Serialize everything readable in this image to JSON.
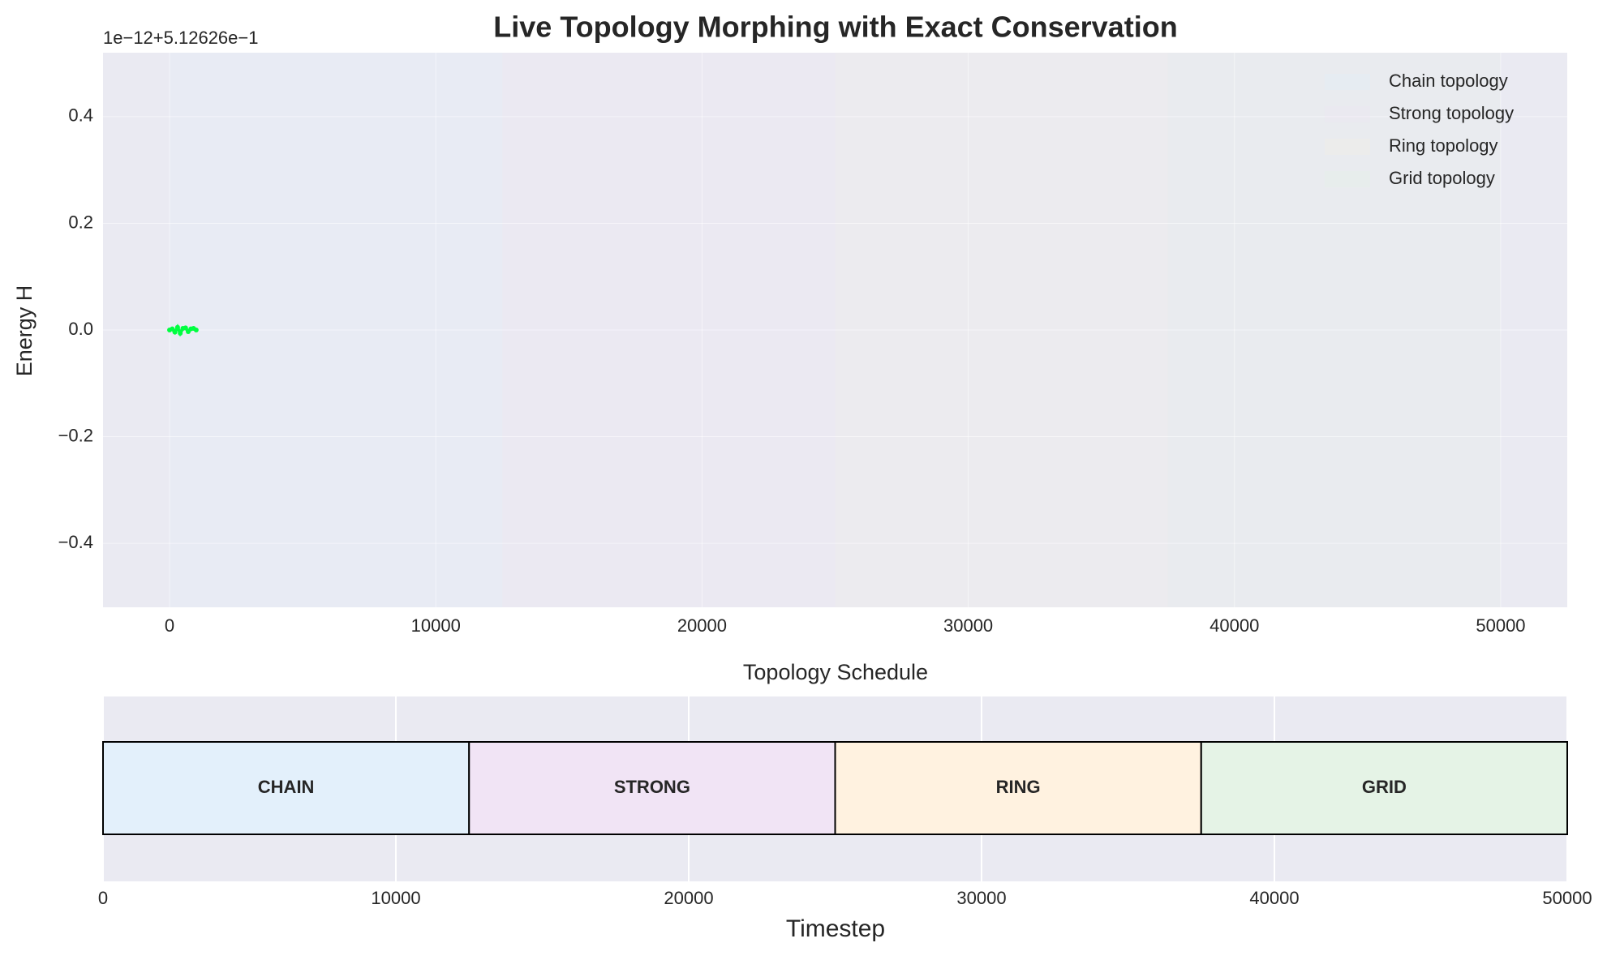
{
  "chart_data": [
    {
      "type": "line",
      "title": "Live Topology Morphing with Exact Conservation",
      "y_label": "Energy H",
      "y_offset_label": "1e−12+5.12626e−1",
      "xlim": [
        -2500,
        52500
      ],
      "xticks": [
        0,
        10000,
        20000,
        30000,
        40000,
        50000
      ],
      "ylim": [
        -0.52,
        0.52
      ],
      "yticks": [
        {
          "value": -0.4,
          "label": "−0.4"
        },
        {
          "value": -0.2,
          "label": "−0.2"
        },
        {
          "value": 0,
          "label": "0.0"
        },
        0.2,
        0.4
      ],
      "grid": true,
      "legend": "upper right",
      "bands": [
        {
          "name": "Chain topology",
          "start": 0,
          "end": 12500,
          "color": "#e3eefa"
        },
        {
          "name": "Strong topology",
          "start": 12500,
          "end": 25000,
          "color": "#eee6f3"
        },
        {
          "name": "Ring topology",
          "start": 25000,
          "end": 37500,
          "color": "#f3eee6"
        },
        {
          "name": "Grid topology",
          "start": 37500,
          "end": 50000,
          "color": "#e6f0e8"
        }
      ],
      "series": [
        {
          "color": "#00ff40",
          "x": [
            0,
            100,
            200,
            300,
            400,
            500,
            600,
            700,
            800,
            900,
            1000
          ],
          "values": [
            0,
            0.002,
            -0.004,
            0.005,
            -0.006,
            0.003,
            0.004,
            -0.003,
            0.002,
            0.003,
            0
          ]
        }
      ]
    },
    {
      "type": "timeline",
      "title": "Topology Schedule",
      "x_label": "Timestep",
      "xlim": [
        0,
        50000
      ],
      "xticks": [
        0,
        10000,
        20000,
        30000,
        40000,
        50000
      ],
      "segments": [
        {
          "name": "CHAIN",
          "start": 0,
          "end": 12500,
          "color": "#e3f0fb"
        },
        {
          "name": "STRONG",
          "start": 12500,
          "end": 25000,
          "color": "#f1e4f5"
        },
        {
          "name": "RING",
          "start": 25000,
          "end": 37500,
          "color": "#fff2e0"
        },
        {
          "name": "GRID",
          "start": 37500,
          "end": 50000,
          "color": "#e5f3e6"
        }
      ]
    }
  ]
}
